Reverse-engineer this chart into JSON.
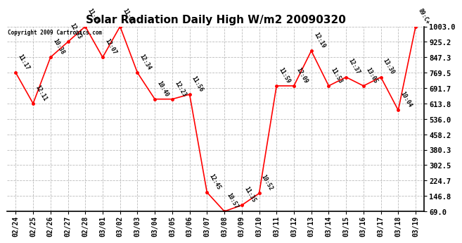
{
  "title": "Solar Radiation Daily High W/m2 20090320",
  "copyright": "Copyright 2009 Cartronics.com",
  "dates": [
    "02/24",
    "02/25",
    "02/26",
    "02/27",
    "02/28",
    "03/01",
    "03/02",
    "03/03",
    "03/04",
    "03/05",
    "03/06",
    "03/07",
    "03/08",
    "03/09",
    "03/10",
    "03/11",
    "03/12",
    "03/13",
    "03/14",
    "03/15",
    "03/16",
    "03/17",
    "03/18",
    "03/19"
  ],
  "values": [
    769.5,
    613.8,
    847.3,
    925.2,
    1003.0,
    847.3,
    1003.0,
    769.5,
    636.0,
    636.0,
    660.0,
    165.0,
    69.0,
    100.0,
    160.0,
    703.0,
    703.0,
    880.0,
    703.0,
    747.0,
    703.0,
    747.0,
    580.0,
    1003.0
  ],
  "annotations": [
    "11:17",
    "12:11",
    "10:38",
    "12:33",
    "11:25",
    "12:07",
    "11:22",
    "12:34",
    "10:40",
    "12:23",
    "11:56",
    "12:45",
    "10:57",
    "11:35",
    "10:52",
    "11:59",
    "12:09",
    "12:19",
    "11:53",
    "12:37",
    "13:05",
    "13:30",
    "10:04",
    "89:C+"
  ],
  "line_color": "#ff0000",
  "marker_color": "#ff0000",
  "bg_color": "#ffffff",
  "grid_color": "#bbbbbb",
  "ylim_min": 69.0,
  "ylim_max": 1003.0,
  "yticks": [
    69.0,
    146.8,
    224.7,
    302.5,
    380.3,
    458.2,
    536.0,
    613.8,
    691.7,
    769.5,
    847.3,
    925.2,
    1003.0
  ]
}
